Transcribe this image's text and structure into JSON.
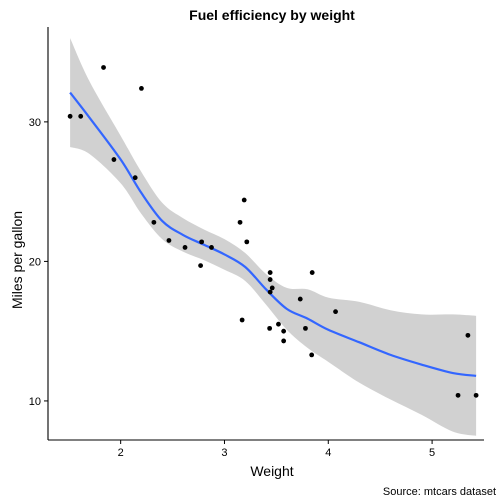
{
  "chart_data": {
    "type": "scatter",
    "title": "Fuel efficiency by weight",
    "xlabel": "Weight",
    "ylabel": "Miles per gallon",
    "caption": "Source: mtcars dataset",
    "xlim": [
      1.3,
      5.5
    ],
    "ylim": [
      7.2,
      36.8
    ],
    "x_ticks": [
      2,
      3,
      4,
      5
    ],
    "y_ticks": [
      10,
      20,
      30
    ],
    "grid": false,
    "colors": {
      "points": "#000000",
      "smooth_line": "#3366FF",
      "confidence_band": "#999999"
    },
    "points": [
      {
        "x": 2.62,
        "y": 21.0
      },
      {
        "x": 2.875,
        "y": 21.0
      },
      {
        "x": 2.32,
        "y": 22.8
      },
      {
        "x": 3.215,
        "y": 21.4
      },
      {
        "x": 3.44,
        "y": 18.7
      },
      {
        "x": 3.46,
        "y": 18.1
      },
      {
        "x": 3.57,
        "y": 14.3
      },
      {
        "x": 3.19,
        "y": 24.4
      },
      {
        "x": 3.15,
        "y": 22.8
      },
      {
        "x": 3.44,
        "y": 19.2
      },
      {
        "x": 3.44,
        "y": 17.8
      },
      {
        "x": 4.07,
        "y": 16.4
      },
      {
        "x": 3.73,
        "y": 17.3
      },
      {
        "x": 3.78,
        "y": 15.2
      },
      {
        "x": 5.25,
        "y": 10.4
      },
      {
        "x": 5.424,
        "y": 10.4
      },
      {
        "x": 5.345,
        "y": 14.7
      },
      {
        "x": 2.2,
        "y": 32.4
      },
      {
        "x": 1.615,
        "y": 30.4
      },
      {
        "x": 1.835,
        "y": 33.9
      },
      {
        "x": 2.465,
        "y": 21.5
      },
      {
        "x": 3.52,
        "y": 15.5
      },
      {
        "x": 3.435,
        "y": 15.2
      },
      {
        "x": 3.84,
        "y": 13.3
      },
      {
        "x": 3.845,
        "y": 19.2
      },
      {
        "x": 1.935,
        "y": 27.3
      },
      {
        "x": 2.14,
        "y": 26.0
      },
      {
        "x": 1.513,
        "y": 30.4
      },
      {
        "x": 3.17,
        "y": 15.8
      },
      {
        "x": 2.77,
        "y": 19.7
      },
      {
        "x": 3.57,
        "y": 15.0
      },
      {
        "x": 2.78,
        "y": 21.4
      }
    ],
    "smooth": {
      "x": [
        1.513,
        1.7,
        2.0,
        2.2,
        2.4,
        2.6,
        2.8,
        3.0,
        3.2,
        3.4,
        3.6,
        3.8,
        4.0,
        4.3,
        4.6,
        4.9,
        5.2,
        5.424
      ],
      "y": [
        32.1,
        30.3,
        27.3,
        24.9,
        22.9,
        21.9,
        21.2,
        20.5,
        19.6,
        18.0,
        16.6,
        15.9,
        15.1,
        14.2,
        13.3,
        12.6,
        12.0,
        11.8
      ],
      "lower": [
        28.2,
        27.7,
        25.6,
        23.4,
        21.6,
        20.7,
        20.1,
        19.4,
        18.6,
        16.9,
        15.1,
        13.8,
        12.8,
        11.3,
        10.1,
        9.0,
        7.8,
        7.5
      ],
      "upper": [
        36.0,
        32.9,
        29.0,
        26.4,
        24.2,
        23.1,
        22.3,
        21.6,
        20.6,
        19.1,
        18.1,
        18.0,
        17.4,
        17.1,
        16.5,
        16.2,
        16.2,
        16.1
      ]
    }
  }
}
